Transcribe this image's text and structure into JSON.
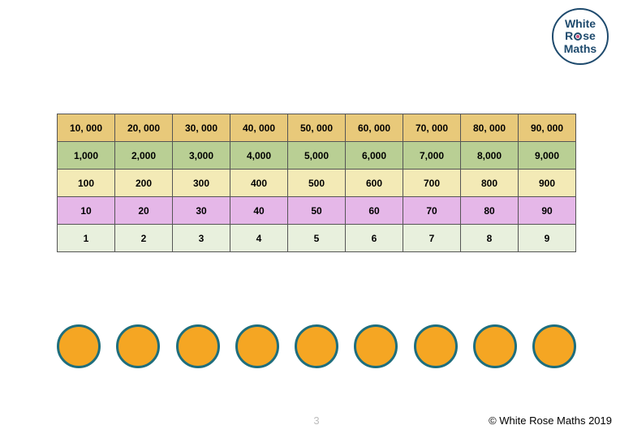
{
  "logo": {
    "line1": "White",
    "line2_pre": "R",
    "line2_post": "se",
    "line3": "Maths"
  },
  "chart": {
    "type": "table",
    "row_colors": [
      "#e8c97a",
      "#b9cf94",
      "#f3eab6",
      "#e5b7e8",
      "#e8f0dd"
    ],
    "border_color": "#555555",
    "font_size": 12,
    "rows": [
      [
        "10, 000",
        "20, 000",
        "30, 000",
        "40, 000",
        "50, 000",
        "60, 000",
        "70, 000",
        "80, 000",
        "90, 000"
      ],
      [
        "1,000",
        "2,000",
        "3,000",
        "4,000",
        "5,000",
        "6,000",
        "7,000",
        "8,000",
        "9,000"
      ],
      [
        "100",
        "200",
        "300",
        "400",
        "500",
        "600",
        "700",
        "800",
        "900"
      ],
      [
        "10",
        "20",
        "30",
        "40",
        "50",
        "60",
        "70",
        "80",
        "90"
      ],
      [
        "1",
        "2",
        "3",
        "4",
        "5",
        "6",
        "7",
        "8",
        "9"
      ]
    ]
  },
  "circles": {
    "count": 9,
    "fill": "#f5a623",
    "stroke": "#1e6e7d",
    "stroke_width": 3,
    "diameter": 54
  },
  "footer": {
    "page": "3",
    "copyright": "© White Rose Maths 2019"
  }
}
